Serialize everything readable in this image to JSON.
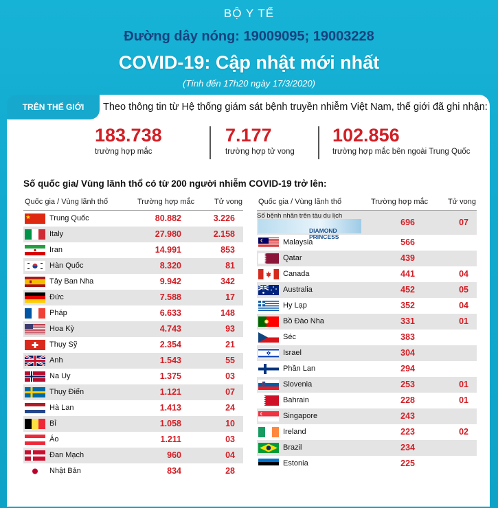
{
  "header": {
    "ministry": "BỘ Y TẾ",
    "hotline": "Đường dây nóng: 19009095; 19003228",
    "title": "COVID-19: Cập nhật mới nhất",
    "updated": "(Tính đến 17h20 ngày 17/3/2020)"
  },
  "world": {
    "tab": "TRÊN THẾ GIỚI",
    "intro": "Theo thông tin từ Hệ thống giám sát bệnh truyền nhiễm Việt Nam, thế giới đã ghi nhận:",
    "stats": [
      {
        "value": "183.738",
        "label": "trường hợp mắc"
      },
      {
        "value": "7.177",
        "label": "trường hợp tử vong"
      },
      {
        "value": "102.856",
        "label": "trường hợp  mắc bên ngoài Trung Quốc"
      }
    ]
  },
  "section_title": "Số quốc gia/ Vùng lãnh thổ có từ 200 người  nhiễm COVID-19 trở lên:",
  "table_headers": {
    "country": "Quốc gia / Vùng lãnh thổ",
    "cases": "Trường hợp mắc",
    "deaths": "Tử vong"
  },
  "left_table": [
    {
      "name": "Trung Quốc",
      "cases": "80.882",
      "deaths": "3.226",
      "flag": "china-flag"
    },
    {
      "name": "Italy",
      "cases": "27.980",
      "deaths": "2.158",
      "flag": "italy-flag"
    },
    {
      "name": "Iran",
      "cases": "14.991",
      "deaths": "853",
      "flag": "iran-flag"
    },
    {
      "name": "Hàn Quốc",
      "cases": "8.320",
      "deaths": "81",
      "flag": "south-korea-flag"
    },
    {
      "name": "Tây Ban Nha",
      "cases": "9.942",
      "deaths": "342",
      "flag": "spain-flag"
    },
    {
      "name": "Đức",
      "cases": "7.588",
      "deaths": "17",
      "flag": "germany-flag"
    },
    {
      "name": "Pháp",
      "cases": "6.633",
      "deaths": "148",
      "flag": "france-flag"
    },
    {
      "name": "Hoa Kỳ",
      "cases": "4.743",
      "deaths": "93",
      "flag": "usa-flag"
    },
    {
      "name": "Thụy Sỹ",
      "cases": "2.354",
      "deaths": "21",
      "flag": "switzerland-flag"
    },
    {
      "name": "Anh",
      "cases": "1.543",
      "deaths": "55",
      "flag": "uk-flag"
    },
    {
      "name": "Na Uy",
      "cases": "1.375",
      "deaths": "03",
      "flag": "norway-flag"
    },
    {
      "name": "Thụy Điển",
      "cases": "1.121",
      "deaths": "07",
      "flag": "sweden-flag"
    },
    {
      "name": "Hà Lan",
      "cases": "1.413",
      "deaths": "24",
      "flag": "netherlands-flag"
    },
    {
      "name": "Bỉ",
      "cases": "1.058",
      "deaths": "10",
      "flag": "belgium-flag"
    },
    {
      "name": "Áo",
      "cases": "1.211",
      "deaths": "03",
      "flag": "austria-flag"
    },
    {
      "name": "Đan Mạch",
      "cases": "960",
      "deaths": "04",
      "flag": "denmark-flag"
    },
    {
      "name": "Nhật Bản",
      "cases": "834",
      "deaths": "28",
      "flag": "japan-flag"
    }
  ],
  "ship_row": {
    "label": "Số bệnh nhân trên tàu du lịch",
    "ship_name": "DIAMOND PRINCESS",
    "cases": "696",
    "deaths": "07"
  },
  "right_table": [
    {
      "name": "Malaysia",
      "cases": "566",
      "deaths": "",
      "flag": "malaysia-flag"
    },
    {
      "name": "Qatar",
      "cases": "439",
      "deaths": "",
      "flag": "qatar-flag"
    },
    {
      "name": "Canada",
      "cases": "441",
      "deaths": "04",
      "flag": "canada-flag"
    },
    {
      "name": "Australia",
      "cases": "452",
      "deaths": "05",
      "flag": "australia-flag"
    },
    {
      "name": "Hy Lạp",
      "cases": "352",
      "deaths": "04",
      "flag": "greece-flag"
    },
    {
      "name": "Bồ Đào Nha",
      "cases": "331",
      "deaths": "01",
      "flag": "portugal-flag"
    },
    {
      "name": "Séc",
      "cases": "383",
      "deaths": "",
      "flag": "czech-flag"
    },
    {
      "name": "Israel",
      "cases": "304",
      "deaths": "",
      "flag": "israel-flag"
    },
    {
      "name": "Phần Lan",
      "cases": "294",
      "deaths": "",
      "flag": "finland-flag"
    },
    {
      "name": "Slovenia",
      "cases": "253",
      "deaths": "01",
      "flag": "slovenia-flag"
    },
    {
      "name": "Bahrain",
      "cases": "228",
      "deaths": "01",
      "flag": "bahrain-flag"
    },
    {
      "name": "Singapore",
      "cases": "243",
      "deaths": "",
      "flag": "singapore-flag"
    },
    {
      "name": "Ireland",
      "cases": "223",
      "deaths": "02",
      "flag": "ireland-flag"
    },
    {
      "name": "Brazil",
      "cases": "234",
      "deaths": "",
      "flag": "brazil-flag"
    },
    {
      "name": "Estonia",
      "cases": "225",
      "deaths": "",
      "flag": "estonia-flag"
    }
  ]
}
